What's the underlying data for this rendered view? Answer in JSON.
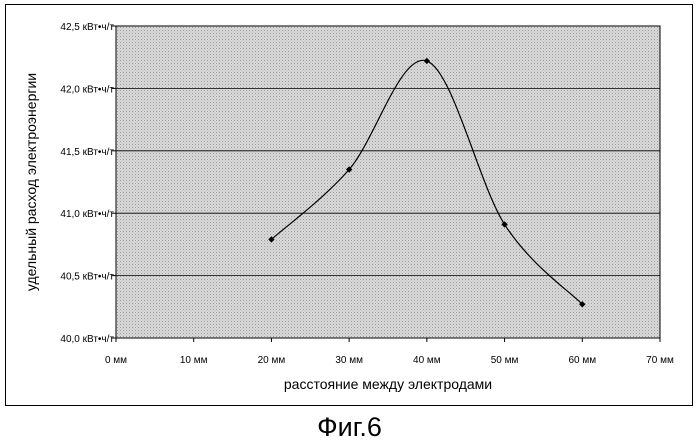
{
  "chart_data": {
    "type": "line",
    "title": "",
    "xlabel": "расстояние между электродами",
    "ylabel": "удельный расход электроэнергии",
    "x_tick_labels": [
      "0 мм",
      "10 мм",
      "20 мм",
      "30 мм",
      "40 мм",
      "50 мм",
      "60 мм",
      "70 мм"
    ],
    "x_ticks": [
      0,
      10,
      20,
      30,
      40,
      50,
      60,
      70
    ],
    "y_tick_labels": [
      "40,0 кВт•ч/т",
      "40,5 кВт•ч/т",
      "41,0 кВт•ч/т",
      "41,5 кВт•ч/т",
      "42,0 кВт•ч/т",
      "42,5 кВт•ч/т"
    ],
    "y_ticks": [
      40.0,
      40.5,
      41.0,
      41.5,
      42.0,
      42.5
    ],
    "xlim": [
      0,
      70
    ],
    "ylim": [
      40.0,
      42.5
    ],
    "grid": "horizontal",
    "smooth": true,
    "series": [
      {
        "x": [
          20,
          30,
          40,
          50,
          60
        ],
        "y": [
          40.79,
          41.35,
          42.22,
          40.91,
          40.27
        ]
      }
    ],
    "colors": {
      "plot_area": "#d4d4d4",
      "line": "#000000",
      "gridline": "#000000"
    }
  },
  "caption": "Фиг.6"
}
